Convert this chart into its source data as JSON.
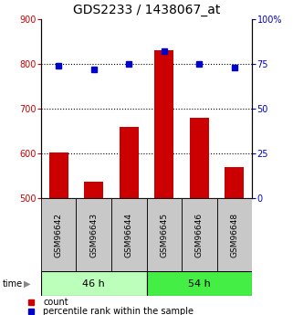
{
  "title": "GDS2233 / 1438067_at",
  "samples": [
    "GSM96642",
    "GSM96643",
    "GSM96644",
    "GSM96645",
    "GSM96646",
    "GSM96648"
  ],
  "counts": [
    602,
    537,
    660,
    830,
    680,
    570
  ],
  "percentiles": [
    74,
    72,
    75,
    82,
    75,
    73
  ],
  "bar_color": "#CC0000",
  "dot_color": "#0000CC",
  "left_ylim": [
    500,
    900
  ],
  "right_ylim": [
    0,
    100
  ],
  "left_yticks": [
    500,
    600,
    700,
    800,
    900
  ],
  "right_yticks": [
    0,
    25,
    50,
    75,
    100
  ],
  "right_yticklabels": [
    "0",
    "25",
    "50",
    "75",
    "100%"
  ],
  "grid_values": [
    600,
    700,
    800
  ],
  "title_fontsize": 10,
  "tick_label_fontsize": 7,
  "axis_label_color_left": "#CC0000",
  "axis_label_color_right": "#0000CC",
  "sample_box_color": "#C8C8C8",
  "group_box_46_color": "#BBFFBB",
  "group_box_54_color": "#44EE44",
  "legend_fontsize": 7,
  "sample_fontsize": 6.5,
  "group_fontsize": 8
}
